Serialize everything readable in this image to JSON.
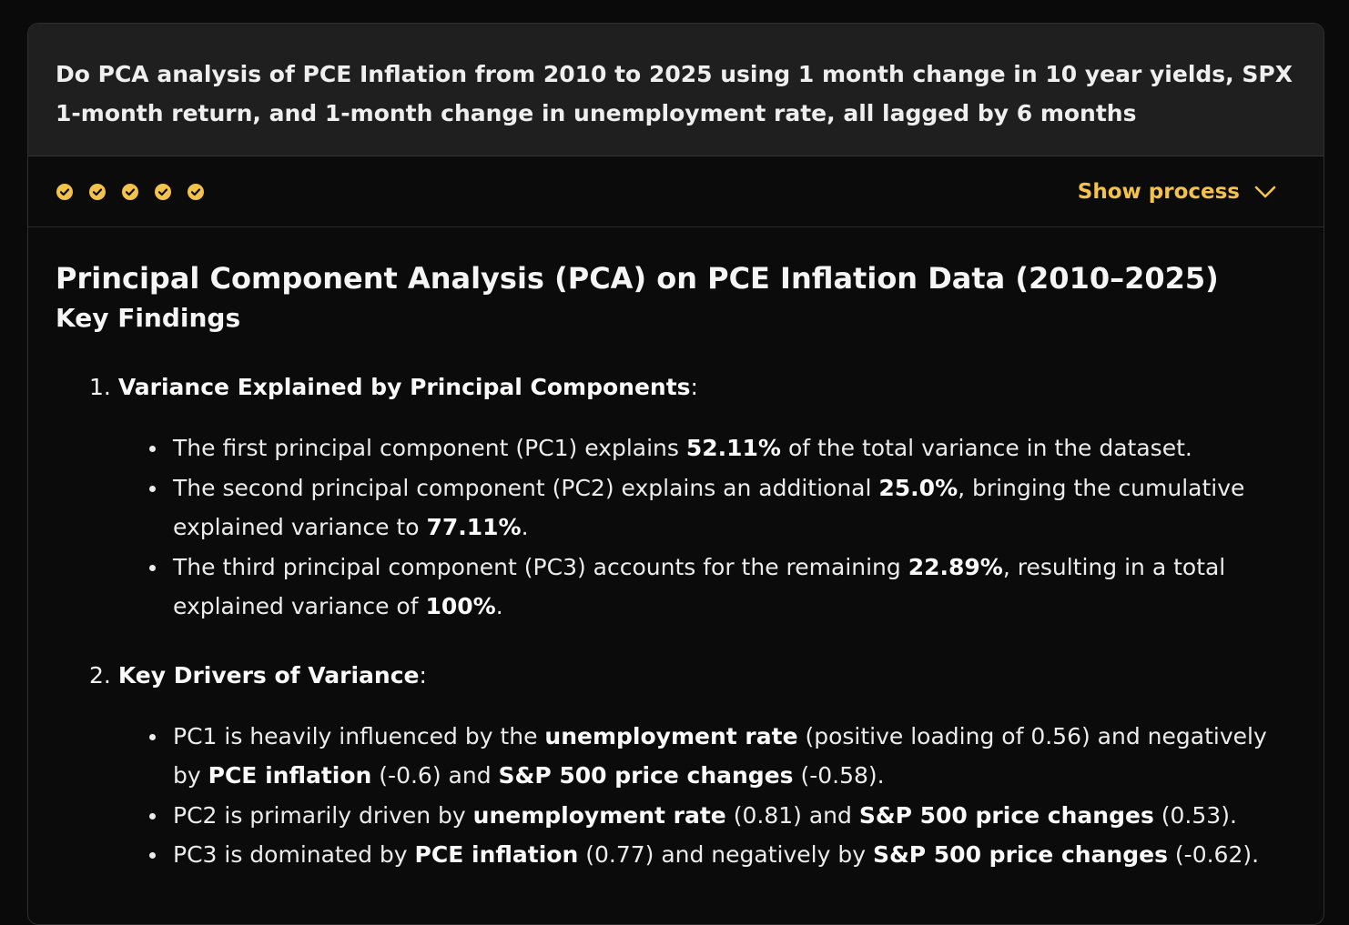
{
  "prompt": {
    "text": "Do PCA analysis of PCE Inflation from 2010 to 2025 using 1 month change in 10 year yields, SPX 1-month return, and 1-month change in unemployment rate, all lagged by 6 months"
  },
  "process": {
    "steps": [
      "check-circle-icon",
      "check-circle-icon",
      "check-circle-icon",
      "check-circle-icon",
      "check-circle-icon"
    ],
    "toggle_label": "Show process",
    "toggle_icon": "chevron-down-icon",
    "accent_color": "#f3c24a"
  },
  "answer": {
    "title": "Principal Component Analysis (PCA) on PCE Inflation Data (2010–2025)",
    "subtitle": "Key Findings",
    "sections": [
      {
        "number": "1.",
        "heading": "Variance Explained by Principal Components",
        "bullets": [
          [
            "The first principal component (PC1) explains ",
            "52.11%",
            " of the total variance in the dataset."
          ],
          [
            "The second principal component (PC2) explains an additional ",
            "25.0%",
            ", bringing the cumulative explained variance to ",
            "77.11%",
            "."
          ],
          [
            "The third principal component (PC3) accounts for the remaining ",
            "22.89%",
            ", resulting in a total explained variance of ",
            "100%",
            "."
          ]
        ]
      },
      {
        "number": "2.",
        "heading": "Key Drivers of Variance",
        "bullets": [
          [
            "PC1 is heavily influenced by the ",
            "unemployment rate",
            " (positive loading of 0.56) and negatively by ",
            "PCE inflation",
            " (-0.6) and ",
            "S&P 500 price changes",
            " (-0.58)."
          ],
          [
            "PC2 is primarily driven by ",
            "unemployment rate",
            " (0.81) and ",
            "S&P 500 price changes",
            " (0.53)."
          ],
          [
            "PC3 is dominated by ",
            "PCE inflation",
            " (0.77) and negatively by ",
            "S&P 500 price changes",
            " (-0.62)."
          ]
        ]
      }
    ]
  }
}
